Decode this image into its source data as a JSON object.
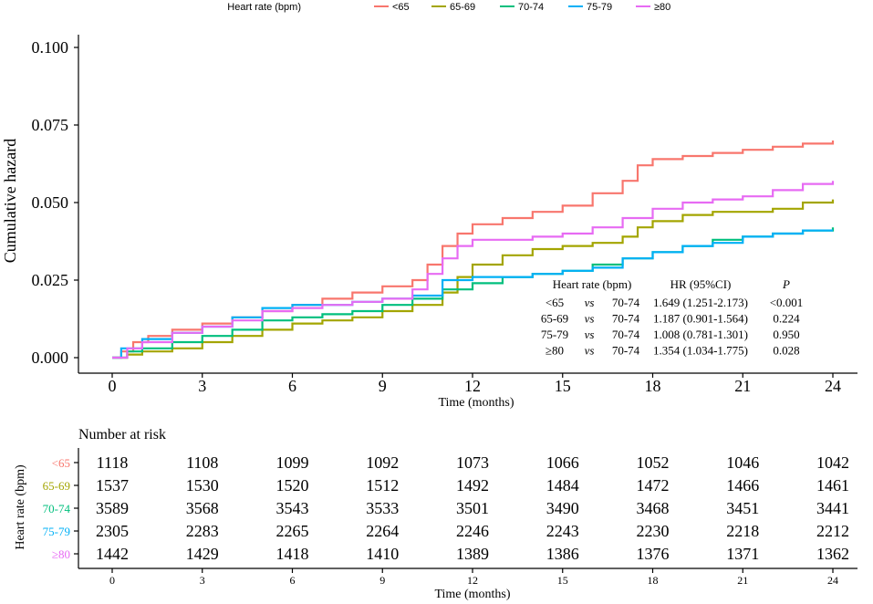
{
  "legend": {
    "title": "Heart rate (bpm)",
    "position": "top"
  },
  "chart_data": {
    "type": "line",
    "subtype": "step",
    "ylabel": "Cumulative hazard",
    "xlabel": "Time (months)",
    "xlim": [
      0,
      24
    ],
    "ylim": [
      0,
      0.1
    ],
    "x_ticks": [
      "0",
      "3",
      "6",
      "9",
      "12",
      "15",
      "18",
      "21",
      "24"
    ],
    "y_ticks": [
      "0.000",
      "0.025",
      "0.050",
      "0.075",
      "0.100"
    ],
    "grid": false,
    "series": [
      {
        "name": "<65",
        "color": "#F8766D",
        "points": [
          [
            0,
            0
          ],
          [
            0.3,
            0.002
          ],
          [
            0.7,
            0.005
          ],
          [
            1.2,
            0.007
          ],
          [
            2,
            0.009
          ],
          [
            3,
            0.011
          ],
          [
            4,
            0.013
          ],
          [
            5,
            0.015
          ],
          [
            6,
            0.017
          ],
          [
            7,
            0.019
          ],
          [
            8,
            0.021
          ],
          [
            9,
            0.023
          ],
          [
            10,
            0.025
          ],
          [
            10.5,
            0.03
          ],
          [
            11,
            0.036
          ],
          [
            11.5,
            0.04
          ],
          [
            12,
            0.043
          ],
          [
            13,
            0.045
          ],
          [
            14,
            0.047
          ],
          [
            15,
            0.049
          ],
          [
            16,
            0.053
          ],
          [
            17,
            0.057
          ],
          [
            17.5,
            0.062
          ],
          [
            18,
            0.064
          ],
          [
            19,
            0.065
          ],
          [
            20,
            0.066
          ],
          [
            21,
            0.067
          ],
          [
            22,
            0.068
          ],
          [
            23,
            0.069
          ],
          [
            24,
            0.07
          ]
        ]
      },
      {
        "name": "65-69",
        "color": "#A3A500",
        "points": [
          [
            0,
            0
          ],
          [
            0.5,
            0.001
          ],
          [
            1,
            0.002
          ],
          [
            2,
            0.003
          ],
          [
            3,
            0.005
          ],
          [
            4,
            0.007
          ],
          [
            5,
            0.009
          ],
          [
            6,
            0.011
          ],
          [
            7,
            0.012
          ],
          [
            8,
            0.013
          ],
          [
            9,
            0.015
          ],
          [
            10,
            0.017
          ],
          [
            11,
            0.021
          ],
          [
            11.5,
            0.026
          ],
          [
            12,
            0.03
          ],
          [
            13,
            0.033
          ],
          [
            14,
            0.035
          ],
          [
            15,
            0.036
          ],
          [
            16,
            0.037
          ],
          [
            17,
            0.039
          ],
          [
            17.5,
            0.042
          ],
          [
            18,
            0.044
          ],
          [
            19,
            0.046
          ],
          [
            20,
            0.047
          ],
          [
            21,
            0.047
          ],
          [
            22,
            0.048
          ],
          [
            23,
            0.05
          ],
          [
            24,
            0.051
          ]
        ]
      },
      {
        "name": "70-74",
        "color": "#00BF7D",
        "points": [
          [
            0,
            0
          ],
          [
            0.5,
            0.002
          ],
          [
            1,
            0.003
          ],
          [
            2,
            0.005
          ],
          [
            3,
            0.007
          ],
          [
            4,
            0.009
          ],
          [
            5,
            0.012
          ],
          [
            6,
            0.013
          ],
          [
            7,
            0.014
          ],
          [
            8,
            0.015
          ],
          [
            9,
            0.017
          ],
          [
            10,
            0.019
          ],
          [
            11,
            0.022
          ],
          [
            12,
            0.024
          ],
          [
            13,
            0.026
          ],
          [
            14,
            0.027
          ],
          [
            15,
            0.028
          ],
          [
            16,
            0.03
          ],
          [
            17,
            0.032
          ],
          [
            18,
            0.034
          ],
          [
            19,
            0.036
          ],
          [
            20,
            0.038
          ],
          [
            21,
            0.039
          ],
          [
            22,
            0.04
          ],
          [
            23,
            0.041
          ],
          [
            24,
            0.042
          ]
        ]
      },
      {
        "name": "75-79",
        "color": "#00B0F6",
        "points": [
          [
            0,
            0
          ],
          [
            0.3,
            0.003
          ],
          [
            1,
            0.006
          ],
          [
            2,
            0.008
          ],
          [
            3,
            0.01
          ],
          [
            4,
            0.013
          ],
          [
            5,
            0.016
          ],
          [
            6,
            0.017
          ],
          [
            7,
            0.017
          ],
          [
            8,
            0.018
          ],
          [
            9,
            0.019
          ],
          [
            10,
            0.02
          ],
          [
            11,
            0.025
          ],
          [
            12,
            0.026
          ],
          [
            13,
            0.026
          ],
          [
            14,
            0.027
          ],
          [
            15,
            0.028
          ],
          [
            16,
            0.029
          ],
          [
            17,
            0.032
          ],
          [
            18,
            0.034
          ],
          [
            19,
            0.036
          ],
          [
            20,
            0.037
          ],
          [
            21,
            0.039
          ],
          [
            22,
            0.04
          ],
          [
            23,
            0.041
          ],
          [
            24,
            0.041
          ]
        ]
      },
      {
        "name": "≥80",
        "color": "#E76BF3",
        "points": [
          [
            0,
            0
          ],
          [
            0.5,
            0.003
          ],
          [
            1,
            0.005
          ],
          [
            2,
            0.008
          ],
          [
            3,
            0.01
          ],
          [
            4,
            0.012
          ],
          [
            5,
            0.015
          ],
          [
            6,
            0.016
          ],
          [
            7,
            0.017
          ],
          [
            8,
            0.018
          ],
          [
            9,
            0.019
          ],
          [
            10,
            0.022
          ],
          [
            10.5,
            0.027
          ],
          [
            11,
            0.032
          ],
          [
            11.5,
            0.036
          ],
          [
            12,
            0.038
          ],
          [
            13,
            0.038
          ],
          [
            14,
            0.039
          ],
          [
            15,
            0.04
          ],
          [
            16,
            0.042
          ],
          [
            17,
            0.045
          ],
          [
            18,
            0.048
          ],
          [
            19,
            0.05
          ],
          [
            20,
            0.051
          ],
          [
            21,
            0.052
          ],
          [
            22,
            0.054
          ],
          [
            23,
            0.056
          ],
          [
            24,
            0.057
          ]
        ]
      }
    ],
    "annotation_table": {
      "headers": [
        "Heart rate (bpm)",
        "HR (95%CI)",
        "P"
      ],
      "rows": [
        {
          "group": "<65",
          "vs": "vs",
          "ref": "70-74",
          "hr": "1.649 (1.251-2.173)",
          "p": "<0.001"
        },
        {
          "group": "65-69",
          "vs": "vs",
          "ref": "70-74",
          "hr": "1.187 (0.901-1.564)",
          "p": "0.224"
        },
        {
          "group": "75-79",
          "vs": "vs",
          "ref": "70-74",
          "hr": "1.008 (0.781-1.301)",
          "p": "0.950"
        },
        {
          "group": "≥80",
          "vs": "vs",
          "ref": "70-74",
          "hr": "1.354 (1.034-1.775)",
          "p": "0.028"
        }
      ]
    }
  },
  "risk_table": {
    "title": "Number at risk",
    "ylabel": "Heart rate (bpm)",
    "xlabel": "Time (months)",
    "time_ticks": [
      "0",
      "3",
      "6",
      "9",
      "12",
      "15",
      "18",
      "21",
      "24"
    ],
    "rows": [
      {
        "name": "<65",
        "color": "#F8766D",
        "values": [
          "1118",
          "1108",
          "1099",
          "1092",
          "1073",
          "1066",
          "1052",
          "1046",
          "1042"
        ]
      },
      {
        "name": "65-69",
        "color": "#A3A500",
        "values": [
          "1537",
          "1530",
          "1520",
          "1512",
          "1492",
          "1484",
          "1472",
          "1466",
          "1461"
        ]
      },
      {
        "name": "70-74",
        "color": "#00BF7D",
        "values": [
          "3589",
          "3568",
          "3543",
          "3533",
          "3501",
          "3490",
          "3468",
          "3451",
          "3441"
        ]
      },
      {
        "name": "75-79",
        "color": "#00B0F6",
        "values": [
          "2305",
          "2283",
          "2265",
          "2264",
          "2246",
          "2243",
          "2230",
          "2218",
          "2212"
        ]
      },
      {
        "name": "≥80",
        "color": "#E76BF3",
        "values": [
          "1442",
          "1429",
          "1418",
          "1410",
          "1389",
          "1386",
          "1376",
          "1371",
          "1362"
        ]
      }
    ]
  }
}
